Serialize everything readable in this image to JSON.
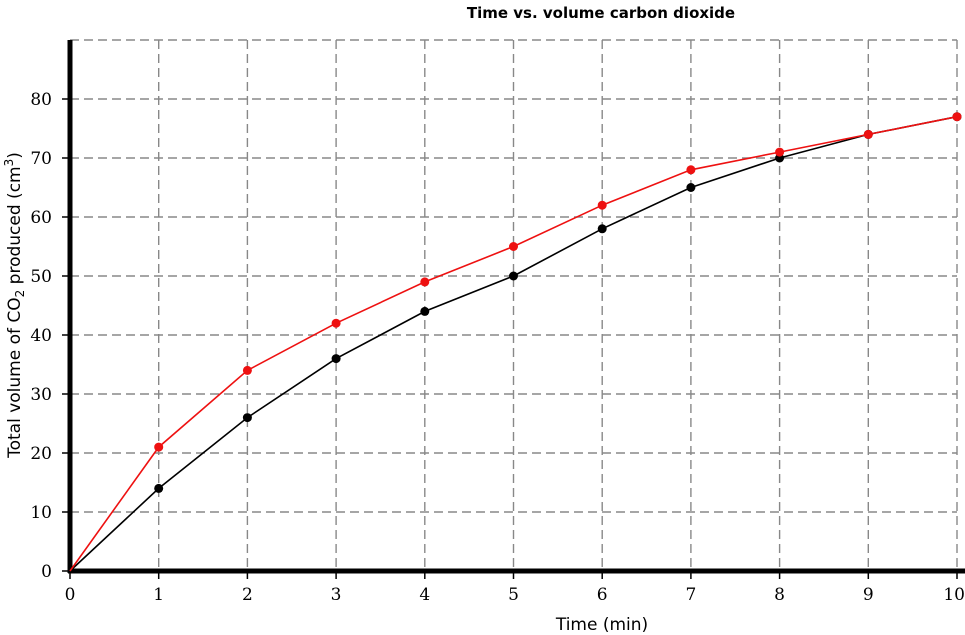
{
  "chart_data": {
    "type": "line",
    "title": "Time vs. volume carbon dioxide",
    "xlabel": "Time (min)",
    "ylabel": {
      "prefix": "Total volume of CO",
      "subscript": "2",
      "middle": " produced (cm",
      "superscript": "3",
      "suffix": ")"
    },
    "xlim": [
      0,
      10
    ],
    "ylim": [
      0,
      90
    ],
    "x_ticks": [
      0,
      1,
      2,
      3,
      4,
      5,
      6,
      7,
      8,
      9,
      10
    ],
    "y_ticks": [
      0,
      10,
      20,
      30,
      40,
      50,
      60,
      70,
      80
    ],
    "grid": true,
    "legend": "none",
    "series": [
      {
        "color": "#000000",
        "x": [
          0,
          1,
          2,
          3,
          4,
          5,
          6,
          7,
          8,
          9,
          10
        ],
        "y": [
          0,
          14,
          26,
          36,
          44,
          50,
          58,
          65,
          70,
          74,
          77
        ]
      },
      {
        "color": "#ee1111",
        "x": [
          0,
          1,
          2,
          3,
          4,
          5,
          6,
          7,
          8,
          9,
          10
        ],
        "y": [
          0,
          21,
          34,
          42,
          49,
          55,
          62,
          68,
          71,
          74,
          77
        ]
      }
    ]
  }
}
